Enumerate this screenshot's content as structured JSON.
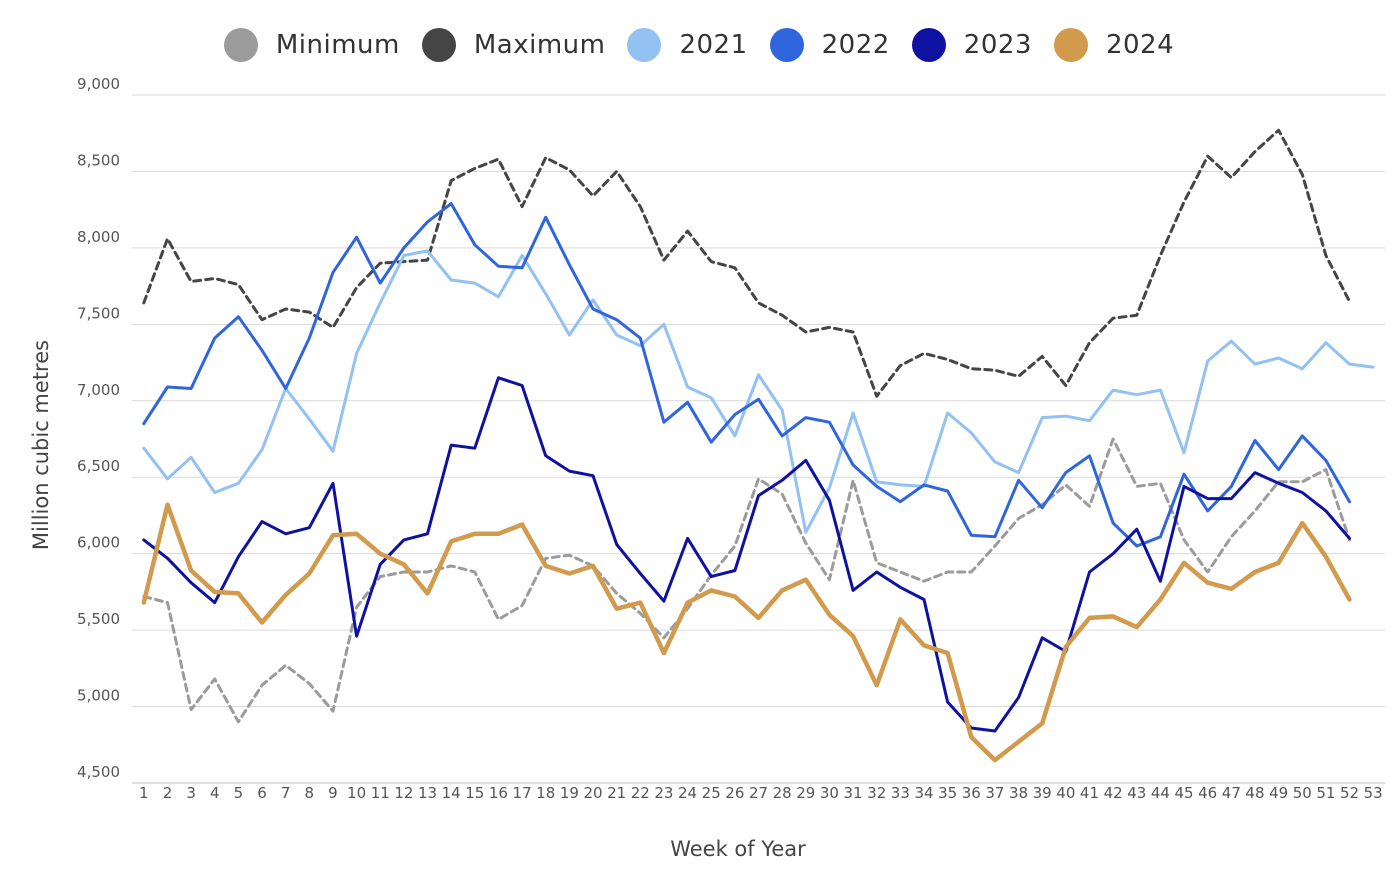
{
  "chart_data": {
    "type": "line",
    "title": "",
    "xlabel": "Week of Year",
    "ylabel": "Million cubic metres",
    "xlim": [
      1,
      53
    ],
    "ylim": [
      4500,
      9000
    ],
    "y_ticks": [
      4500,
      5000,
      5500,
      6000,
      6500,
      7000,
      7500,
      8000,
      8500,
      9000
    ],
    "y_tick_labels": [
      "4,500",
      "5,000",
      "5,500",
      "6,000",
      "6,500",
      "7,000",
      "7,500",
      "8,000",
      "8,500",
      "9,000"
    ],
    "x_ticks": [
      1,
      2,
      3,
      4,
      5,
      6,
      7,
      8,
      9,
      10,
      11,
      12,
      13,
      14,
      15,
      16,
      17,
      18,
      19,
      20,
      21,
      22,
      23,
      24,
      25,
      26,
      27,
      28,
      29,
      30,
      31,
      32,
      33,
      34,
      35,
      36,
      37,
      38,
      39,
      40,
      41,
      42,
      43,
      44,
      45,
      46,
      47,
      48,
      49,
      50,
      51,
      52,
      53
    ],
    "x_tick_labels": [
      "1",
      "2",
      "3",
      "4",
      "5",
      "6",
      "7",
      "8",
      "9",
      "10",
      "11",
      "12",
      "13",
      "14",
      "15",
      "16",
      "17",
      "18",
      "19",
      "20",
      "21",
      "22",
      "23",
      "24",
      "25",
      "26",
      "27",
      "28",
      "29",
      "30",
      "31",
      "32",
      "33",
      "34",
      "35",
      "36",
      "37",
      "38",
      "39",
      "40",
      "41",
      "42",
      "43",
      "44",
      "45",
      "46",
      "47",
      "48",
      "49",
      "50",
      "51",
      "52",
      "53"
    ],
    "grid": "horizontal",
    "legend_position": "top-center",
    "series": [
      {
        "name": "Minimum",
        "color": "#9b9b9b",
        "style": "dashed",
        "x": [
          1,
          2,
          3,
          4,
          5,
          6,
          7,
          8,
          9,
          10,
          11,
          12,
          13,
          14,
          15,
          16,
          17,
          18,
          19,
          20,
          21,
          22,
          23,
          24,
          25,
          26,
          27,
          28,
          29,
          30,
          31,
          32,
          33,
          34,
          35,
          36,
          37,
          38,
          39,
          40,
          41,
          42,
          43,
          44,
          45,
          46,
          47,
          48,
          49,
          50,
          51,
          52
        ],
        "values": [
          5720,
          5680,
          4980,
          5180,
          4900,
          5140,
          5270,
          5150,
          4970,
          5650,
          5850,
          5880,
          5880,
          5920,
          5880,
          5570,
          5660,
          5970,
          5990,
          5920,
          5740,
          5610,
          5450,
          5640,
          5860,
          6050,
          6490,
          6390,
          6070,
          5830,
          6480,
          5940,
          5880,
          5820,
          5880,
          5880,
          6050,
          6230,
          6320,
          6450,
          6310,
          6750,
          6440,
          6460,
          6090,
          5880,
          6110,
          6280,
          6470,
          6470,
          6550,
          6090
        ]
      },
      {
        "name": "Maximum",
        "color": "#454545",
        "style": "dashed",
        "x": [
          1,
          2,
          3,
          4,
          5,
          6,
          7,
          8,
          9,
          10,
          11,
          12,
          13,
          14,
          15,
          16,
          17,
          18,
          19,
          20,
          21,
          22,
          23,
          24,
          25,
          26,
          27,
          28,
          29,
          30,
          31,
          32,
          33,
          34,
          35,
          36,
          37,
          38,
          39,
          40,
          41,
          42,
          43,
          44,
          45,
          46,
          47,
          48,
          49,
          50,
          51,
          52
        ],
        "values": [
          7640,
          8060,
          7780,
          7800,
          7760,
          7530,
          7600,
          7580,
          7480,
          7740,
          7900,
          7910,
          7920,
          8440,
          8520,
          8580,
          8270,
          8590,
          8510,
          8340,
          8500,
          8270,
          7920,
          8110,
          7910,
          7870,
          7640,
          7560,
          7450,
          7480,
          7450,
          7030,
          7230,
          7310,
          7270,
          7210,
          7200,
          7160,
          7290,
          7100,
          7380,
          7540,
          7560,
          7950,
          8300,
          8600,
          8460,
          8630,
          8770,
          8480,
          7950,
          7650
        ]
      },
      {
        "name": "2021",
        "color": "#92c1f2",
        "style": "solid",
        "x": [
          1,
          2,
          3,
          4,
          5,
          6,
          7,
          8,
          9,
          10,
          11,
          12,
          13,
          14,
          15,
          16,
          17,
          18,
          19,
          20,
          21,
          22,
          23,
          24,
          25,
          26,
          27,
          28,
          29,
          30,
          31,
          32,
          33,
          34,
          35,
          36,
          37,
          38,
          39,
          40,
          41,
          42,
          43,
          44,
          45,
          46,
          47,
          48,
          49,
          50,
          51,
          52,
          53
        ],
        "values": [
          6690,
          6490,
          6630,
          6400,
          6460,
          6680,
          7080,
          6880,
          6670,
          7310,
          7640,
          7950,
          7980,
          7790,
          7770,
          7680,
          7950,
          7700,
          7430,
          7660,
          7430,
          7360,
          7500,
          7090,
          7020,
          6770,
          7170,
          6940,
          6140,
          6430,
          6920,
          6470,
          6450,
          6440,
          6920,
          6790,
          6600,
          6530,
          6890,
          6900,
          6870,
          7070,
          7040,
          7070,
          6660,
          7260,
          7390,
          7240,
          7280,
          7210,
          7380,
          7240,
          7220
        ]
      },
      {
        "name": "2022",
        "color": "#2f65dd",
        "style": "solid",
        "x": [
          1,
          2,
          3,
          4,
          5,
          6,
          7,
          8,
          9,
          10,
          11,
          12,
          13,
          14,
          15,
          16,
          17,
          18,
          19,
          20,
          21,
          22,
          23,
          24,
          25,
          26,
          27,
          28,
          29,
          30,
          31,
          32,
          33,
          34,
          35,
          36,
          37,
          38,
          39,
          40,
          41,
          42,
          43,
          44,
          45,
          46,
          47,
          48,
          49,
          50,
          51,
          52
        ],
        "values": [
          6850,
          7090,
          7080,
          7410,
          7550,
          7330,
          7080,
          7410,
          7840,
          8070,
          7770,
          8000,
          8170,
          8290,
          8020,
          7880,
          7870,
          8200,
          7890,
          7600,
          7530,
          7410,
          6860,
          6990,
          6730,
          6910,
          7010,
          6770,
          6890,
          6860,
          6580,
          6440,
          6340,
          6450,
          6410,
          6120,
          6110,
          6480,
          6300,
          6530,
          6640,
          6200,
          6050,
          6110,
          6520,
          6280,
          6440,
          6740,
          6550,
          6770,
          6610,
          6340
        ]
      },
      {
        "name": "2023",
        "color": "#0f12a1",
        "style": "solid",
        "x": [
          1,
          2,
          3,
          4,
          5,
          6,
          7,
          8,
          9,
          10,
          11,
          12,
          13,
          14,
          15,
          16,
          17,
          18,
          19,
          20,
          21,
          22,
          23,
          24,
          25,
          26,
          27,
          28,
          29,
          30,
          31,
          32,
          33,
          34,
          35,
          36,
          37,
          38,
          39,
          40,
          41,
          42,
          43,
          44,
          45,
          46,
          47,
          48,
          49,
          50,
          51,
          52
        ],
        "values": [
          6090,
          5970,
          5810,
          5680,
          5980,
          6210,
          6130,
          6170,
          6460,
          5460,
          5930,
          6090,
          6130,
          6710,
          6690,
          7150,
          7100,
          6640,
          6540,
          6510,
          6060,
          5870,
          5690,
          6100,
          5850,
          5890,
          6380,
          6480,
          6610,
          6350,
          5760,
          5880,
          5780,
          5700,
          5030,
          4860,
          4840,
          5060,
          5450,
          5360,
          5880,
          6000,
          6160,
          5820,
          6440,
          6360,
          6360,
          6530,
          6460,
          6400,
          6280,
          6100
        ]
      },
      {
        "name": "2024",
        "color": "#d19a4d",
        "style": "solid",
        "x": [
          1,
          2,
          3,
          4,
          5,
          6,
          7,
          8,
          9,
          10,
          11,
          12,
          13,
          14,
          15,
          16,
          17,
          18,
          19,
          20,
          21,
          22,
          23,
          24,
          25,
          26,
          27,
          28,
          29,
          30,
          31,
          32,
          33,
          34,
          35,
          36,
          37,
          38,
          39,
          40,
          41,
          42,
          43,
          44,
          45,
          46,
          47,
          48,
          49,
          50,
          51,
          52
        ],
        "values": [
          5680,
          6320,
          5890,
          5750,
          5740,
          5550,
          5730,
          5870,
          6120,
          6130,
          6000,
          5930,
          5740,
          6080,
          6130,
          6130,
          6190,
          5920,
          5870,
          5920,
          5640,
          5680,
          5350,
          5680,
          5760,
          5720,
          5580,
          5760,
          5830,
          5600,
          5460,
          5140,
          5570,
          5400,
          5350,
          4800,
          4650,
          4770,
          4890,
          5390,
          5580,
          5590,
          5520,
          5700,
          5940,
          5810,
          5770,
          5880,
          5940,
          6200,
          5980,
          5700
        ]
      }
    ]
  }
}
